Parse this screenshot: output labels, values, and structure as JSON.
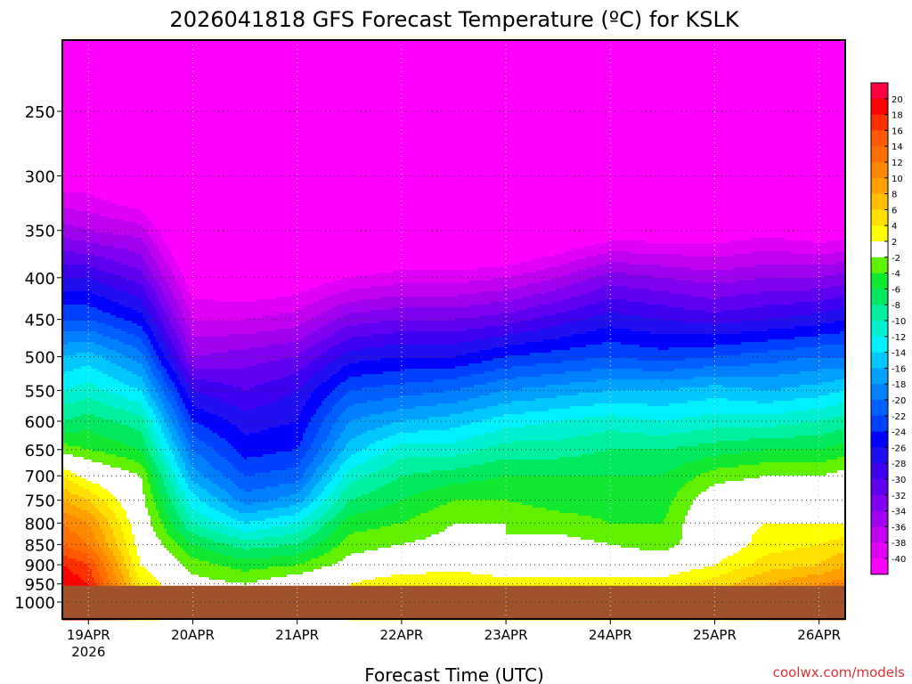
{
  "chart_data": {
    "type": "heatmap",
    "title": "2026041818 GFS Forecast Temperature (ºC) for KSLK",
    "xlabel": "Forecast Time (UTC)",
    "ylabel": "",
    "credit": "coolwx.com/models",
    "x_ticks": [
      {
        "label": "19APR",
        "hour": 6,
        "sub": "2026"
      },
      {
        "label": "20APR",
        "hour": 30
      },
      {
        "label": "21APR",
        "hour": 54
      },
      {
        "label": "22APR",
        "hour": 78
      },
      {
        "label": "23APR",
        "hour": 102
      },
      {
        "label": "24APR",
        "hour": 126
      },
      {
        "label": "25APR",
        "hour": 150
      },
      {
        "label": "26APR",
        "hour": 174
      }
    ],
    "x_range_hours": [
      0,
      180
    ],
    "x_hours_note": "hours since 2026-04-18 18Z",
    "y_ticks": [
      "250",
      "300",
      "350",
      "400",
      "450",
      "500",
      "550",
      "600",
      "650",
      "700",
      "750",
      "800",
      "850",
      "900",
      "950",
      "1000"
    ],
    "y_range_hpa": [
      205,
      1050
    ],
    "ground_level_hpa": 955,
    "grid": "dotted",
    "colorbar": {
      "labels": [
        "20",
        "18",
        "16",
        "14",
        "12",
        "10",
        "8",
        "6",
        "4",
        "2",
        "-2",
        "-4",
        "-6",
        "-8",
        "-10",
        "-12",
        "-14",
        "-16",
        "-18",
        "-20",
        "-22",
        "-24",
        "-26",
        "-28",
        "-30",
        "-32",
        "-34",
        "-36",
        "-38",
        "-40"
      ],
      "colors": [
        "#ff0040",
        "#ff0000",
        "#ff3000",
        "#ff5a00",
        "#ff7000",
        "#ff8800",
        "#ffa000",
        "#ffbe00",
        "#ffe000",
        "#ffff00",
        "#ffffff",
        "#60f000",
        "#10e830",
        "#00e860",
        "#00f0a0",
        "#00f0d0",
        "#00f0ff",
        "#00c8ff",
        "#00a0ff",
        "#0080ff",
        "#0060ff",
        "#0040ff",
        "#0000ff",
        "#2010f0",
        "#4000f0",
        "#6000f0",
        "#8000f0",
        "#a000f0",
        "#c000f0",
        "#e000f8",
        "#ff00ff"
      ],
      "position": "right"
    },
    "levels_hpa": [
      200,
      250,
      300,
      350,
      400,
      450,
      500,
      550,
      600,
      650,
      700,
      750,
      800,
      850,
      900,
      950
    ],
    "time_hours": [
      0,
      6,
      18,
      30,
      42,
      54,
      66,
      78,
      90,
      102,
      114,
      126,
      138,
      150,
      162,
      174,
      180
    ],
    "temperature_c": [
      [
        -58,
        -52,
        -42,
        -35,
        -28,
        -22,
        -16,
        -12,
        -8,
        -3,
        4,
        8,
        12,
        14,
        18,
        20
      ],
      [
        -58,
        -51,
        -42,
        -36,
        -28,
        -22,
        -15,
        -11,
        -7,
        -4,
        1,
        6,
        10,
        12,
        16,
        18
      ],
      [
        -57,
        -50,
        -45,
        -37,
        -31,
        -25,
        -19,
        -14,
        -9,
        -6,
        -2,
        -1,
        0,
        1,
        2,
        4
      ],
      [
        -55,
        -52,
        -50,
        -46,
        -42,
        -38,
        -34,
        -28,
        -24,
        -20,
        -17,
        -13,
        -10,
        -6,
        -3,
        -1
      ],
      [
        -55,
        -53,
        -50,
        -47,
        -43,
        -38,
        -33,
        -30,
        -27,
        -25,
        -22,
        -19,
        -14,
        -9,
        -5,
        -2
      ],
      [
        -56,
        -53,
        -50,
        -47,
        -42,
        -37,
        -32,
        -28,
        -26,
        -24,
        -21,
        -17,
        -12,
        -8,
        -4,
        0
      ],
      [
        -57,
        -54,
        -50,
        -46,
        -40,
        -33,
        -27,
        -22,
        -18,
        -15,
        -11,
        -8,
        -5,
        -3,
        -1,
        2
      ],
      [
        -57,
        -55,
        -50,
        -45,
        -39,
        -32,
        -26,
        -21,
        -16,
        -11,
        -8,
        -6,
        -4,
        -2,
        0,
        4
      ],
      [
        -58,
        -55,
        -51,
        -46,
        -39,
        -32,
        -26,
        -20,
        -15,
        -11,
        -7,
        -4,
        -2,
        -1,
        1,
        4
      ],
      [
        -58,
        -55,
        -52,
        -46,
        -38,
        -31,
        -24,
        -18,
        -13,
        -9,
        -6,
        -4,
        -2,
        -2,
        0,
        3
      ],
      [
        -58,
        -56,
        -51,
        -44,
        -36,
        -29,
        -23,
        -17,
        -12,
        -9,
        -6,
        -5,
        -3,
        -1,
        0,
        3
      ],
      [
        -58,
        -55,
        -50,
        -42,
        -33,
        -27,
        -22,
        -16,
        -11,
        -8,
        -6,
        -5,
        -4,
        -2,
        0,
        3
      ],
      [
        -57,
        -55,
        -50,
        -42,
        -34,
        -28,
        -23,
        -16,
        -12,
        -8,
        -6,
        -5,
        -4,
        -3,
        0,
        3
      ],
      [
        -58,
        -54,
        -49,
        -42,
        -35,
        -29,
        -22,
        -15,
        -11,
        -7,
        -3,
        0,
        1,
        0,
        2,
        5
      ],
      [
        -58,
        -54,
        -48,
        -41,
        -34,
        -28,
        -21,
        -16,
        -11,
        -6,
        -2,
        1,
        2,
        3,
        5,
        8
      ],
      [
        -58,
        -54,
        -48,
        -42,
        -34,
        -27,
        -20,
        -15,
        -10,
        -6,
        -2,
        0,
        2,
        4,
        6,
        10
      ],
      [
        -58,
        -54,
        -48,
        -42,
        -33,
        -26,
        -20,
        -14,
        -9,
        -5,
        -1,
        0,
        2,
        5,
        8,
        11
      ]
    ]
  }
}
